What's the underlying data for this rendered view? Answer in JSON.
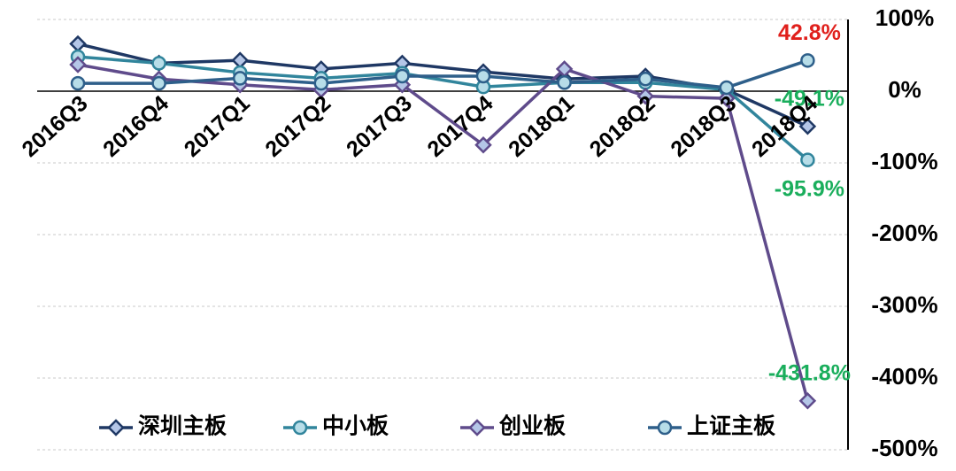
{
  "chart_data": {
    "type": "line",
    "categories": [
      "2016Q3",
      "2016Q4",
      "2017Q1",
      "2017Q2",
      "2017Q3",
      "2017Q4",
      "2018Q1",
      "2018Q2",
      "2018Q3",
      "2018Q4"
    ],
    "series": [
      {
        "name": "深圳主板",
        "color": "#1f3864",
        "marker": "diamond",
        "values": [
          66,
          39,
          43,
          31,
          39,
          27,
          17,
          21,
          2,
          -49.1
        ],
        "value_labels": [
          null,
          null,
          null,
          null,
          null,
          null,
          null,
          null,
          null,
          "-49.1%"
        ],
        "label_color": "#1aae5c"
      },
      {
        "name": "中小板",
        "color": "#31859c",
        "marker": "circle",
        "values": [
          48,
          39,
          26,
          18,
          25,
          6,
          12,
          12,
          2,
          -95.9
        ],
        "value_labels": [
          null,
          null,
          null,
          null,
          null,
          null,
          null,
          null,
          null,
          "-95.9%"
        ],
        "label_color": "#1aae5c"
      },
      {
        "name": "创业板",
        "color": "#5f4b8b",
        "marker": "diamond",
        "values": [
          37,
          17,
          9,
          2,
          9,
          -75,
          31,
          -7,
          -10,
          -431.8
        ],
        "value_labels": [
          null,
          null,
          null,
          null,
          null,
          null,
          null,
          null,
          null,
          "-431.8%"
        ],
        "label_color": "#1aae5c"
      },
      {
        "name": "上证主板",
        "color": "#2e5f8a",
        "marker": "circle",
        "values": [
          11,
          11,
          18,
          11,
          21,
          21,
          12,
          17,
          5,
          42.8
        ],
        "value_labels": [
          null,
          null,
          null,
          null,
          null,
          null,
          null,
          null,
          null,
          "42.8%"
        ],
        "label_color": "#e0201c"
      }
    ],
    "ylim": [
      -500,
      100
    ],
    "yticks": [
      {
        "value": -500,
        "label": "-500%"
      },
      {
        "value": -400,
        "label": "-400%"
      },
      {
        "value": -300,
        "label": "-300%"
      },
      {
        "value": -200,
        "label": "-200%"
      },
      {
        "value": -100,
        "label": "-100%"
      },
      {
        "value": 0,
        "label": "0%"
      },
      {
        "value": 100,
        "label": "100%"
      }
    ],
    "y_axis_side": "right",
    "grid": true,
    "legend": "bottom"
  }
}
